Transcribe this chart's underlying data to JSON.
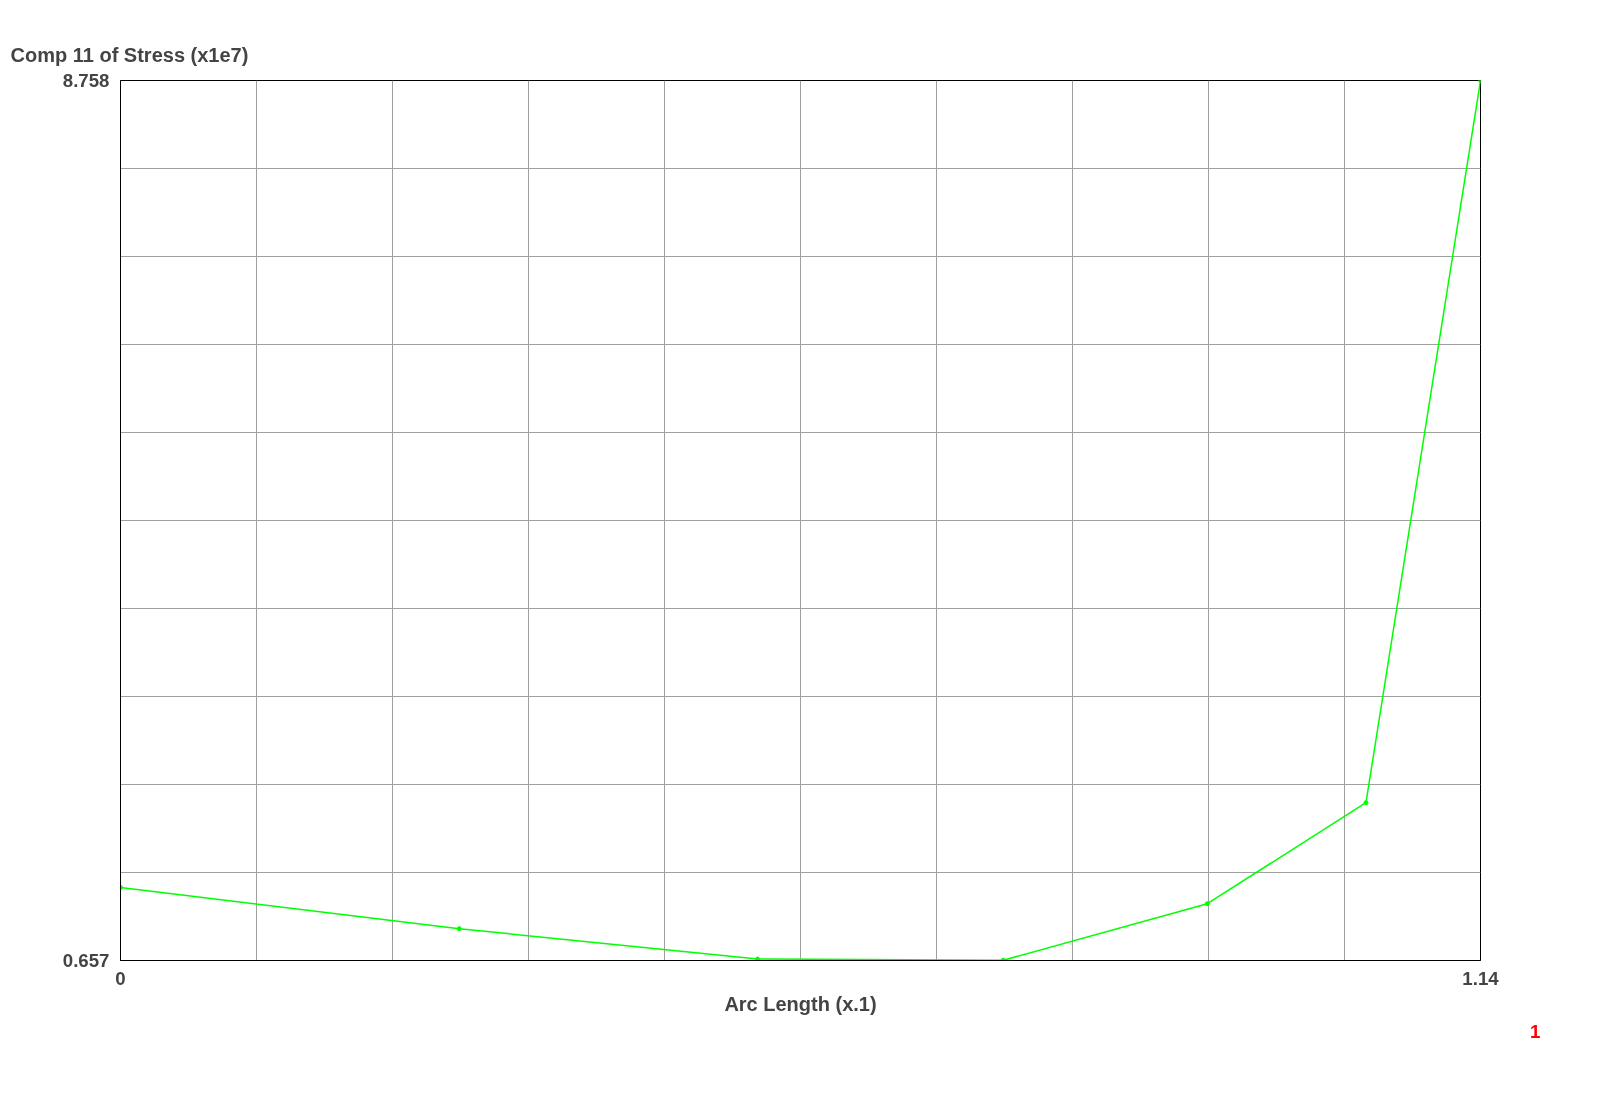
{
  "chart_data": {
    "type": "line",
    "title": "Comp 11 of Stress (x1e7)",
    "xlabel": "Arc Length (x.1)",
    "x": [
      0,
      0.284,
      0.534,
      0.74,
      0.911,
      1.044,
      1.14
    ],
    "series": [
      {
        "color": "#00ff00",
        "values": [
          1.33,
          0.95,
          0.67,
          0.66,
          1.18,
          2.11,
          8.758
        ]
      }
    ],
    "xlim": [
      0,
      1.14
    ],
    "ylim": [
      0.657,
      8.758
    ],
    "xticks": [
      0,
      {
        "value": 0.114,
        "label": null
      },
      {
        "value": 0.228,
        "label": null
      },
      {
        "value": 0.342,
        "label": null
      },
      {
        "value": 0.456,
        "label": null
      },
      {
        "value": 0.57,
        "label": null
      },
      {
        "value": 0.684,
        "label": null
      },
      {
        "value": 0.798,
        "label": null
      },
      {
        "value": 0.912,
        "label": null
      },
      {
        "value": 1.026,
        "label": null
      },
      1.14
    ],
    "yticks": [
      0.657,
      {
        "value": 1.4671,
        "label": null
      },
      {
        "value": 2.2772,
        "label": null
      },
      {
        "value": 3.0873,
        "label": null
      },
      {
        "value": 3.8974,
        "label": null
      },
      {
        "value": 4.7075,
        "label": null
      },
      {
        "value": 5.5176,
        "label": null
      },
      {
        "value": 6.3277,
        "label": null
      },
      {
        "value": 7.1378,
        "label": null
      },
      {
        "value": 7.9479,
        "label": null
      },
      8.758
    ],
    "grid": true,
    "marker": "circle",
    "line_style": "solid",
    "annotations": [
      "1"
    ]
  }
}
